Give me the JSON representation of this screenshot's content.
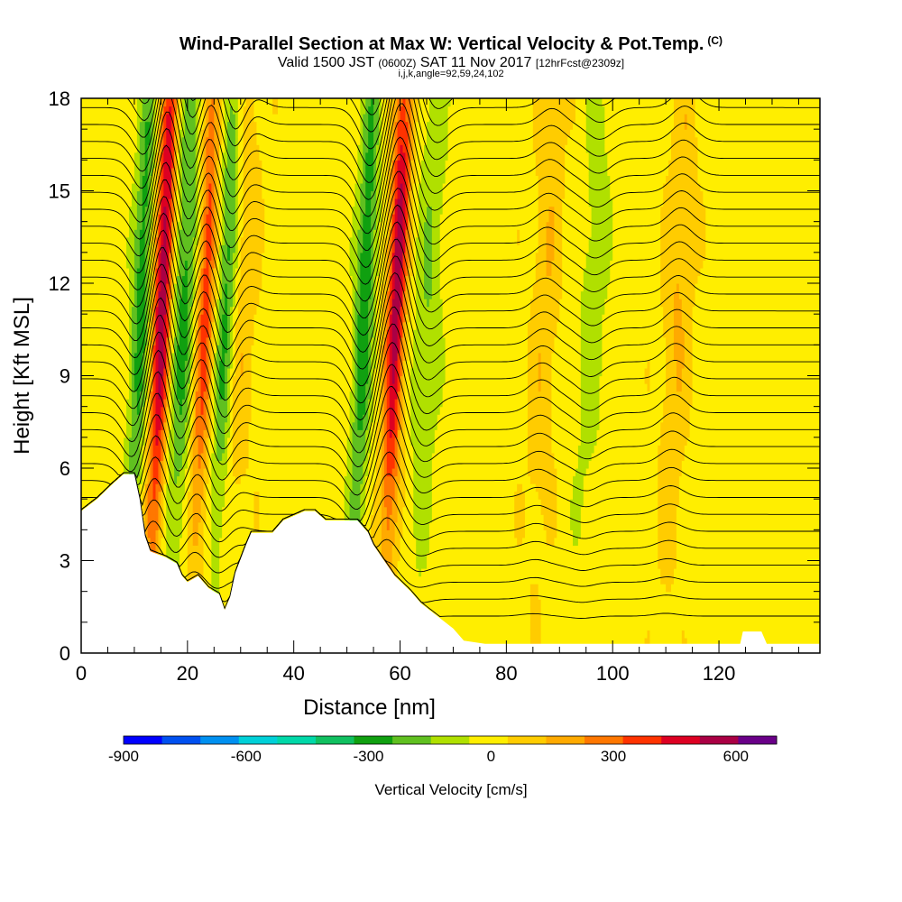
{
  "header": {
    "title": "Wind-Parallel Section at Max W: Vertical Velocity & Pot.Temp.",
    "title_sup": "(C)",
    "subtitle_main": "Valid 1500 JST",
    "subtitle_z": "(0600Z)",
    "subtitle_date": "SAT 11 Nov 2017",
    "subtitle_fcst": "[12hrFcst@2309z]",
    "indices": "i,j,k,angle=92,59,24,102"
  },
  "chart_data": {
    "type": "heatmap",
    "title": "Wind-Parallel Section at Max W: Vertical Velocity & Pot.Temp.",
    "xlabel": "Distance [nm]",
    "ylabel": "Height [Kft MSL]",
    "xlim": [
      0,
      139
    ],
    "ylim": [
      0,
      18
    ],
    "x_ticks": [
      0,
      20,
      40,
      60,
      80,
      100,
      120
    ],
    "y_ticks": [
      0,
      3,
      6,
      9,
      12,
      15,
      18
    ],
    "grid": false,
    "colorbar": {
      "label": "Vertical Velocity [cm/s]",
      "tick_values": [
        -900,
        -600,
        -300,
        0,
        300,
        600
      ],
      "min": -900,
      "max": 700,
      "step": 100,
      "colors": [
        "#0000ff",
        "#0050f0",
        "#0090f0",
        "#00d0d8",
        "#00d8a8",
        "#10c060",
        "#10a010",
        "#60c020",
        "#b0e000",
        "#ffee00",
        "#ffcc00",
        "#ffaa00",
        "#ff7700",
        "#ff3300",
        "#dd0022",
        "#aa0044",
        "#6a0088"
      ]
    },
    "updrafts": [
      {
        "center_nm": 15,
        "peak_cms": 650
      },
      {
        "center_nm": 23,
        "peak_cms": 420
      },
      {
        "center_nm": 59,
        "peak_cms": 600
      },
      {
        "center_nm": 30,
        "peak_cms": 130
      },
      {
        "center_nm": 87,
        "peak_cms": 130
      },
      {
        "center_nm": 112,
        "peak_cms": 150
      }
    ],
    "downdrafts": [
      {
        "center_nm": 11,
        "peak_cms": -330
      },
      {
        "center_nm": 19,
        "peak_cms": -300
      },
      {
        "center_nm": 27,
        "peak_cms": -310
      },
      {
        "center_nm": 53,
        "peak_cms": -350
      },
      {
        "center_nm": 65,
        "peak_cms": -160
      },
      {
        "center_nm": 96,
        "peak_cms": -120
      }
    ],
    "terrain_profile_nm_kft": [
      [
        0,
        4.6
      ],
      [
        3,
        5.0
      ],
      [
        6,
        5.5
      ],
      [
        8,
        5.8
      ],
      [
        10,
        5.8
      ],
      [
        11,
        5.0
      ],
      [
        12,
        3.8
      ],
      [
        13,
        3.3
      ],
      [
        16,
        3.1
      ],
      [
        18,
        2.9
      ],
      [
        19,
        2.5
      ],
      [
        20,
        2.3
      ],
      [
        22,
        2.5
      ],
      [
        24,
        2.1
      ],
      [
        26,
        1.9
      ],
      [
        27,
        1.4
      ],
      [
        28,
        1.8
      ],
      [
        29,
        2.6
      ],
      [
        31,
        3.5
      ],
      [
        32,
        3.9
      ],
      [
        36,
        3.9
      ],
      [
        38,
        4.3
      ],
      [
        42,
        4.6
      ],
      [
        44,
        4.6
      ],
      [
        46,
        4.3
      ],
      [
        50,
        4.3
      ],
      [
        52,
        4.3
      ],
      [
        54,
        3.9
      ],
      [
        55,
        3.5
      ],
      [
        57,
        3.0
      ],
      [
        59,
        2.5
      ],
      [
        62,
        2.0
      ],
      [
        64,
        1.6
      ],
      [
        67,
        1.2
      ],
      [
        70,
        0.8
      ],
      [
        72,
        0.4
      ],
      [
        76,
        0.3
      ],
      [
        110,
        0.3
      ],
      [
        124,
        0.3
      ],
      [
        124.5,
        0.7
      ],
      [
        128,
        0.7
      ],
      [
        129,
        0.3
      ],
      [
        139,
        0.3
      ]
    ],
    "theta_labels_shown": true
  }
}
